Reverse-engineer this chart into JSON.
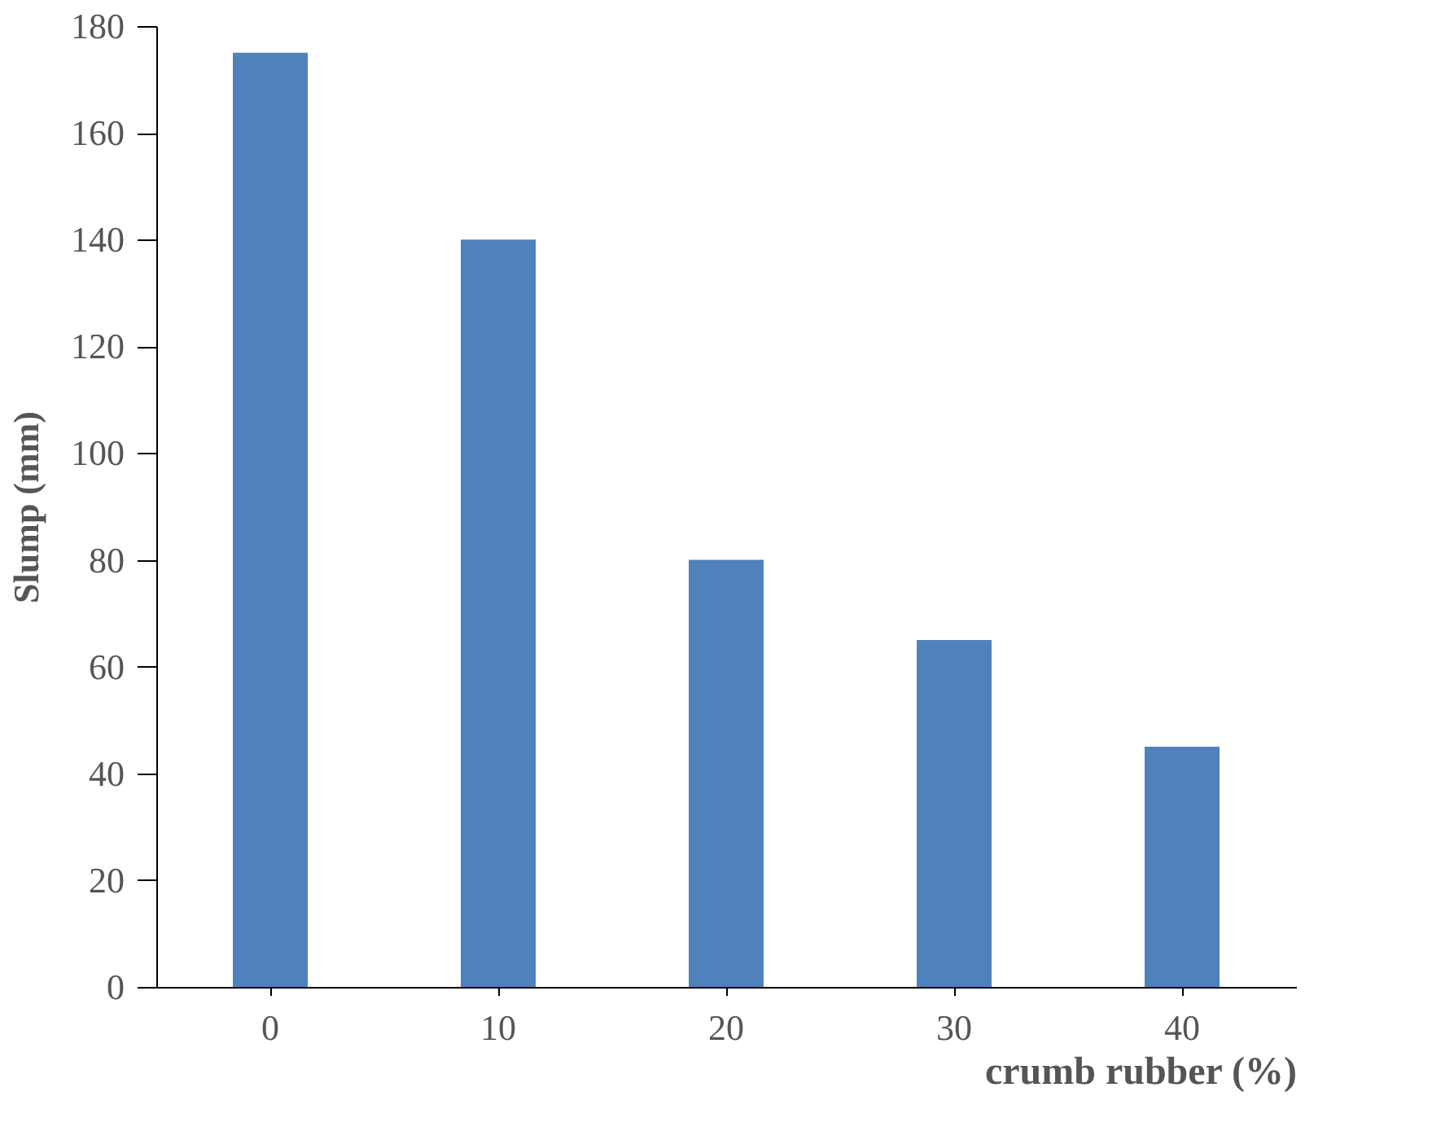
{
  "chart_data": {
    "type": "bar",
    "xlabel": "crumb rubber (%)",
    "ylabel": "Slump (mm)",
    "categories": [
      "0",
      "10",
      "20",
      "30",
      "40"
    ],
    "values": [
      175,
      140,
      80,
      65,
      45
    ],
    "color": "#4f81bd",
    "ylim": [
      0,
      180
    ],
    "yticks": [
      0,
      20,
      40,
      60,
      80,
      100,
      120,
      140,
      160,
      180
    ],
    "grid": false
  }
}
